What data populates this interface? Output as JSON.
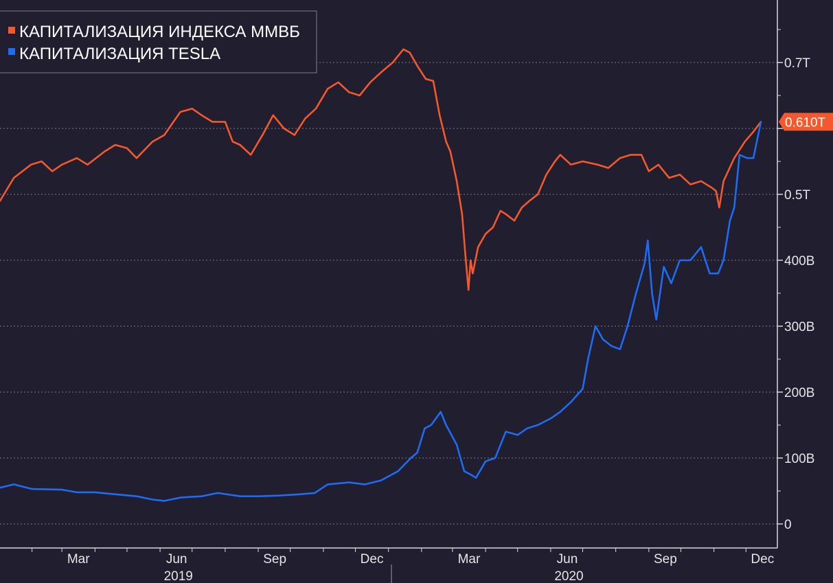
{
  "chart_data": {
    "type": "line",
    "title": "",
    "xlabel": "",
    "ylabel": "",
    "colors": {
      "background": "#201e2f",
      "grid": "#7b7b86",
      "axis": "#d9d9d9",
      "text": "#e6e6e6"
    },
    "grid": true,
    "legend_position": "top-left",
    "x_axis": {
      "month_ticks": [
        "Mar",
        "Jun",
        "Sep",
        "Dec",
        "Mar",
        "Jun",
        "Sep",
        "Dec"
      ],
      "year_labels": [
        "2019",
        "2020"
      ]
    },
    "y_axis": {
      "position": "right",
      "ylim": [
        -20,
        800
      ],
      "tick_values": [
        0,
        100,
        200,
        300,
        400,
        500,
        600,
        700
      ],
      "tick_labels": [
        "0",
        "100B",
        "200B",
        "300B",
        "400B",
        "0.5T",
        "",
        "0.7T"
      ]
    },
    "last_value_badge": {
      "label": "0.610T",
      "color": "#f4592d"
    },
    "x_date_range": [
      "2019-01-02",
      "2020-12-15"
    ],
    "series": [
      {
        "name": "КАПИТАЛИЗАЦИЯ ИНДЕКСА ММВБ",
        "color": "#f4592d",
        "x": [
          "2019-01-02",
          "2019-01-15",
          "2019-01-31",
          "2019-02-10",
          "2019-02-20",
          "2019-03-01",
          "2019-03-15",
          "2019-03-25",
          "2019-04-10",
          "2019-04-20",
          "2019-05-01",
          "2019-05-10",
          "2019-05-25",
          "2019-06-05",
          "2019-06-20",
          "2019-07-01",
          "2019-07-10",
          "2019-07-20",
          "2019-08-01",
          "2019-08-08",
          "2019-08-15",
          "2019-08-25",
          "2019-09-05",
          "2019-09-15",
          "2019-09-25",
          "2019-10-05",
          "2019-10-15",
          "2019-10-25",
          "2019-11-05",
          "2019-11-15",
          "2019-11-25",
          "2019-12-05",
          "2019-12-15",
          "2019-12-25",
          "2020-01-05",
          "2020-01-15",
          "2020-01-21",
          "2020-01-28",
          "2020-02-05",
          "2020-02-12",
          "2020-02-18",
          "2020-02-24",
          "2020-02-28",
          "2020-03-05",
          "2020-03-10",
          "2020-03-13",
          "2020-03-16",
          "2020-03-18",
          "2020-03-20",
          "2020-03-25",
          "2020-04-01",
          "2020-04-08",
          "2020-04-15",
          "2020-04-20",
          "2020-04-28",
          "2020-05-05",
          "2020-05-12",
          "2020-05-20",
          "2020-05-28",
          "2020-06-05",
          "2020-06-10",
          "2020-06-20",
          "2020-07-01",
          "2020-07-15",
          "2020-07-25",
          "2020-08-05",
          "2020-08-15",
          "2020-08-25",
          "2020-09-01",
          "2020-09-10",
          "2020-09-20",
          "2020-09-30",
          "2020-10-10",
          "2020-10-20",
          "2020-10-30",
          "2020-11-03",
          "2020-11-06",
          "2020-11-10",
          "2020-11-20",
          "2020-11-30",
          "2020-12-08",
          "2020-12-15"
        ],
        "values": [
          490,
          525,
          545,
          550,
          535,
          545,
          555,
          545,
          565,
          575,
          570,
          555,
          580,
          590,
          625,
          630,
          620,
          610,
          610,
          580,
          575,
          560,
          590,
          620,
          600,
          590,
          615,
          630,
          660,
          670,
          655,
          650,
          670,
          685,
          700,
          720,
          715,
          695,
          675,
          672,
          620,
          580,
          565,
          520,
          470,
          410,
          355,
          400,
          380,
          420,
          440,
          450,
          475,
          470,
          460,
          480,
          490,
          500,
          530,
          550,
          560,
          545,
          550,
          545,
          540,
          555,
          560,
          560,
          535,
          545,
          525,
          530,
          515,
          520,
          510,
          505,
          480,
          520,
          555,
          580,
          595,
          610
        ]
      },
      {
        "name": "КАПИТАЛИЗАЦИЯ TESLA",
        "color": "#1f6cf2",
        "x": [
          "2019-01-02",
          "2019-01-15",
          "2019-02-01",
          "2019-03-01",
          "2019-03-15",
          "2019-04-01",
          "2019-04-20",
          "2019-05-10",
          "2019-05-25",
          "2019-06-05",
          "2019-06-20",
          "2019-07-10",
          "2019-07-25",
          "2019-08-15",
          "2019-09-01",
          "2019-09-20",
          "2019-10-10",
          "2019-10-24",
          "2019-11-05",
          "2019-11-25",
          "2019-12-10",
          "2019-12-25",
          "2020-01-10",
          "2020-01-22",
          "2020-01-28",
          "2020-02-04",
          "2020-02-10",
          "2020-02-19",
          "2020-02-24",
          "2020-03-05",
          "2020-03-12",
          "2020-03-18",
          "2020-03-23",
          "2020-04-01",
          "2020-04-10",
          "2020-04-20",
          "2020-05-01",
          "2020-05-10",
          "2020-05-20",
          "2020-06-01",
          "2020-06-10",
          "2020-06-20",
          "2020-07-01",
          "2020-07-06",
          "2020-07-13",
          "2020-07-20",
          "2020-07-28",
          "2020-08-05",
          "2020-08-12",
          "2020-08-20",
          "2020-08-28",
          "2020-08-31",
          "2020-09-04",
          "2020-09-08",
          "2020-09-15",
          "2020-09-22",
          "2020-09-30",
          "2020-10-10",
          "2020-10-20",
          "2020-10-28",
          "2020-11-05",
          "2020-11-10",
          "2020-11-16",
          "2020-11-20",
          "2020-11-25",
          "2020-12-02",
          "2020-12-08",
          "2020-12-15"
        ],
        "values": [
          55,
          60,
          53,
          52,
          48,
          48,
          45,
          42,
          37,
          35,
          40,
          42,
          47,
          42,
          42,
          43,
          45,
          47,
          60,
          63,
          60,
          66,
          80,
          100,
          108,
          145,
          150,
          170,
          150,
          120,
          80,
          75,
          70,
          95,
          100,
          140,
          135,
          145,
          150,
          160,
          170,
          185,
          205,
          250,
          300,
          280,
          270,
          265,
          300,
          350,
          395,
          430,
          350,
          310,
          390,
          365,
          400,
          400,
          420,
          380,
          380,
          400,
          460,
          480,
          560,
          555,
          555,
          610
        ]
      }
    ]
  }
}
